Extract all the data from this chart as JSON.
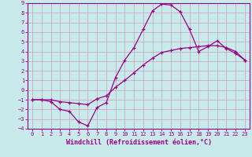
{
  "xlabel": "Windchill (Refroidissement éolien,°C)",
  "ylabel": "",
  "bg_color": "#c8eaea",
  "grid_color": "#c8a0b4",
  "line_color": "#990088",
  "xlim": [
    -0.5,
    23.5
  ],
  "ylim": [
    -4,
    9
  ],
  "xticks": [
    0,
    1,
    2,
    3,
    4,
    5,
    6,
    7,
    8,
    9,
    10,
    11,
    12,
    13,
    14,
    15,
    16,
    17,
    18,
    19,
    20,
    21,
    22,
    23
  ],
  "yticks": [
    -4,
    -3,
    -2,
    -1,
    0,
    1,
    2,
    3,
    4,
    5,
    6,
    7,
    8,
    9
  ],
  "curve1_x": [
    0,
    1,
    2,
    3,
    4,
    5,
    6,
    7,
    8,
    9,
    10,
    11,
    12,
    13,
    14,
    15,
    16,
    17,
    18,
    19,
    20,
    21,
    22,
    23
  ],
  "curve1_y": [
    -1,
    -1,
    -1.2,
    -2,
    -2.2,
    -3.3,
    -3.7,
    -1.8,
    -1.3,
    1.3,
    3.1,
    4.4,
    6.3,
    8.2,
    8.9,
    8.8,
    8.1,
    6.3,
    4.0,
    4.5,
    5.1,
    4.3,
    3.8,
    3.1
  ],
  "curve2_x": [
    0,
    1,
    2,
    3,
    4,
    5,
    6,
    7,
    8,
    9,
    10,
    11,
    12,
    13,
    14,
    15,
    16,
    17,
    18,
    19,
    20,
    21,
    22,
    23
  ],
  "curve2_y": [
    -1,
    -1,
    -1,
    -1.2,
    -1.3,
    -1.4,
    -1.5,
    -0.9,
    -0.6,
    0.3,
    1.0,
    1.8,
    2.6,
    3.3,
    3.9,
    4.1,
    4.3,
    4.4,
    4.5,
    4.6,
    4.6,
    4.4,
    4.0,
    3.1
  ],
  "tick_fontsize": 5.0,
  "axis_fontsize": 6.0
}
